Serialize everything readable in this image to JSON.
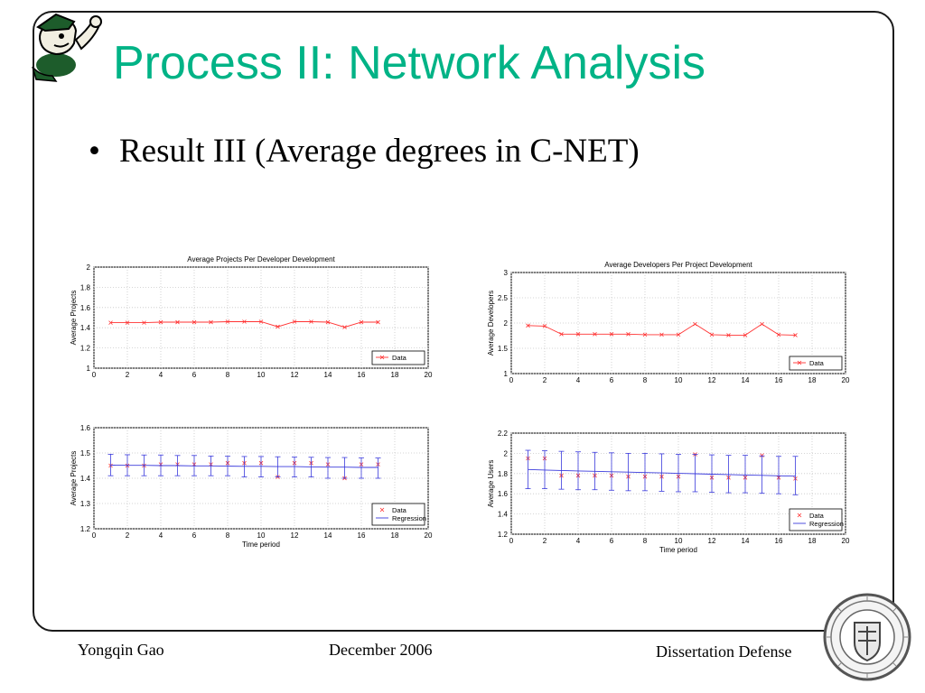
{
  "slide": {
    "title": "Process II: Network Analysis",
    "bullet_marker": "•",
    "bullet": "Result III (Average degrees in C-NET)",
    "colors": {
      "title": "#00b386",
      "data": "#ff3333",
      "regression": "#3b3bdc"
    }
  },
  "footer": {
    "author": "Yongqin Gao",
    "date": "December 2006",
    "event": "Dissertation Defense"
  },
  "icons": {
    "logo": "leprechaun-mascot-icon",
    "seal": "university-seal-icon"
  },
  "chart_data": [
    {
      "type": "line",
      "title": "Average Projects Per Developer Development",
      "xlabel": "",
      "ylabel": "Average Projects",
      "xlim": [
        0,
        20
      ],
      "ylim": [
        1,
        2
      ],
      "xticks": [
        "0",
        "2",
        "4",
        "6",
        "8",
        "10",
        "12",
        "14",
        "16",
        "18",
        "20"
      ],
      "yticks": [
        "1",
        "1.2",
        "1.4",
        "1.6",
        "1.8",
        "2"
      ],
      "grid": true,
      "legend_position": "bottom-right",
      "series": [
        {
          "name": "Data",
          "marker": "x",
          "line": true,
          "color": "#ff3333",
          "x": [
            1,
            2,
            3,
            4,
            5,
            6,
            7,
            8,
            9,
            10,
            11,
            12,
            13,
            14,
            15,
            16,
            17
          ],
          "y": [
            1.45,
            1.45,
            1.45,
            1.455,
            1.455,
            1.455,
            1.455,
            1.46,
            1.46,
            1.46,
            1.41,
            1.46,
            1.46,
            1.455,
            1.405,
            1.455,
            1.455
          ]
        }
      ]
    },
    {
      "type": "line",
      "title": "Average Developers Per Project Development",
      "xlabel": "",
      "ylabel": "Average Developers",
      "xlim": [
        0,
        20
      ],
      "ylim": [
        1,
        3
      ],
      "xticks": [
        "0",
        "2",
        "4",
        "6",
        "8",
        "10",
        "12",
        "14",
        "16",
        "18",
        "20"
      ],
      "yticks": [
        "1",
        "1.5",
        "2",
        "2.5",
        "3"
      ],
      "grid": true,
      "legend_position": "bottom-right",
      "series": [
        {
          "name": "Data",
          "marker": "x",
          "line": true,
          "color": "#ff3333",
          "x": [
            1,
            2,
            3,
            4,
            5,
            6,
            7,
            8,
            9,
            10,
            11,
            12,
            13,
            14,
            15,
            16,
            17
          ],
          "y": [
            1.95,
            1.94,
            1.78,
            1.78,
            1.78,
            1.78,
            1.78,
            1.77,
            1.77,
            1.77,
            1.98,
            1.77,
            1.76,
            1.76,
            1.98,
            1.77,
            1.76
          ]
        }
      ]
    },
    {
      "type": "scatter",
      "title": "",
      "xlabel": "Time period",
      "ylabel": "Average Projects",
      "xlim": [
        0,
        20
      ],
      "ylim": [
        1.2,
        1.6
      ],
      "xticks": [
        "0",
        "2",
        "4",
        "6",
        "8",
        "10",
        "12",
        "14",
        "16",
        "18",
        "20"
      ],
      "yticks": [
        "1.2",
        "1.3",
        "1.4",
        "1.5",
        "1.6"
      ],
      "grid": true,
      "legend_position": "bottom-right",
      "series": [
        {
          "name": "Data",
          "marker": "x",
          "line": false,
          "color": "#ff3333",
          "x": [
            1,
            2,
            3,
            4,
            5,
            6,
            7,
            8,
            9,
            10,
            11,
            12,
            13,
            14,
            15,
            16,
            17
          ],
          "y": [
            1.45,
            1.45,
            1.45,
            1.455,
            1.455,
            1.455,
            1.455,
            1.46,
            1.46,
            1.46,
            1.405,
            1.46,
            1.46,
            1.455,
            1.4,
            1.455,
            1.455
          ]
        },
        {
          "name": "Regression",
          "marker": "",
          "line": true,
          "color": "#3b3bdc",
          "x": [
            1,
            2,
            3,
            4,
            5,
            6,
            7,
            8,
            9,
            10,
            11,
            12,
            13,
            14,
            15,
            16,
            17
          ],
          "y": [
            1.452,
            1.451,
            1.451,
            1.45,
            1.45,
            1.449,
            1.449,
            1.448,
            1.447,
            1.447,
            1.446,
            1.446,
            1.445,
            1.444,
            1.444,
            1.443,
            1.443
          ],
          "err_low": [
            1.41,
            1.41,
            1.41,
            1.41,
            1.41,
            1.41,
            1.41,
            1.41,
            1.405,
            1.405,
            1.405,
            1.405,
            1.405,
            1.4,
            1.4,
            1.4,
            1.4
          ],
          "err_high": [
            1.495,
            1.493,
            1.492,
            1.492,
            1.49,
            1.49,
            1.488,
            1.487,
            1.486,
            1.486,
            1.485,
            1.484,
            1.483,
            1.482,
            1.482,
            1.481,
            1.48
          ]
        }
      ]
    },
    {
      "type": "scatter",
      "title": "",
      "xlabel": "Time period",
      "ylabel": "Average Users",
      "xlim": [
        0,
        20
      ],
      "ylim": [
        1.2,
        2.2
      ],
      "xticks": [
        "0",
        "2",
        "4",
        "6",
        "8",
        "10",
        "12",
        "14",
        "16",
        "18",
        "20"
      ],
      "yticks": [
        "1.2",
        "1.4",
        "1.6",
        "1.8",
        "2",
        "2.2"
      ],
      "grid": true,
      "legend_position": "bottom-right",
      "series": [
        {
          "name": "Data",
          "marker": "x",
          "line": false,
          "color": "#ff3333",
          "x": [
            1,
            2,
            3,
            4,
            5,
            6,
            7,
            8,
            9,
            10,
            11,
            12,
            13,
            14,
            15,
            16,
            17
          ],
          "y": [
            1.95,
            1.95,
            1.78,
            1.78,
            1.78,
            1.78,
            1.77,
            1.77,
            1.77,
            1.77,
            1.99,
            1.76,
            1.76,
            1.76,
            1.98,
            1.76,
            1.75
          ]
        },
        {
          "name": "Regression",
          "marker": "",
          "line": true,
          "color": "#3b3bdc",
          "x": [
            1,
            2,
            3,
            4,
            5,
            6,
            7,
            8,
            9,
            10,
            11,
            12,
            13,
            14,
            15,
            16,
            17
          ],
          "y": [
            1.84,
            1.835,
            1.83,
            1.826,
            1.822,
            1.818,
            1.814,
            1.81,
            1.806,
            1.802,
            1.798,
            1.794,
            1.79,
            1.786,
            1.782,
            1.778,
            1.774
          ],
          "err_low": [
            1.65,
            1.65,
            1.645,
            1.64,
            1.64,
            1.635,
            1.63,
            1.63,
            1.625,
            1.62,
            1.62,
            1.615,
            1.61,
            1.61,
            1.605,
            1.6,
            1.59
          ],
          "err_high": [
            2.03,
            2.025,
            2.02,
            2.015,
            2.01,
            2.005,
            2.0,
            2.0,
            1.995,
            1.99,
            1.99,
            1.985,
            1.98,
            1.98,
            1.975,
            1.97,
            1.97
          ]
        }
      ]
    }
  ]
}
